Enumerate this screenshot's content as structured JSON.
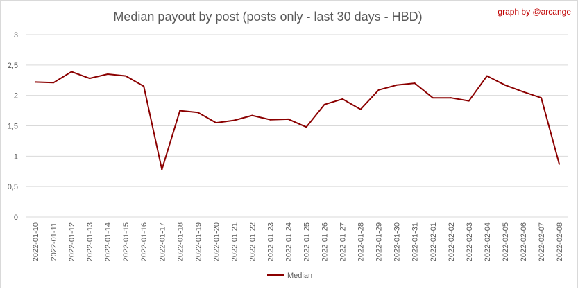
{
  "chart_data": {
    "type": "line",
    "title": "Median payout by post (posts only - last 30 days - HBD)",
    "credit": "graph by @arcange",
    "xlabel": "",
    "ylabel": "",
    "ylim": [
      0,
      3
    ],
    "yticks": [
      "0",
      "0,5",
      "1",
      "1,5",
      "2",
      "2,5",
      "3"
    ],
    "grid": true,
    "legend_position": "bottom",
    "categories": [
      "2022-01-10",
      "2022-01-11",
      "2022-01-12",
      "2022-01-13",
      "2022-01-14",
      "2022-01-15",
      "2022-01-16",
      "2022-01-17",
      "2022-01-18",
      "2022-01-19",
      "2022-01-20",
      "2022-01-21",
      "2022-01-22",
      "2022-01-23",
      "2022-01-24",
      "2022-01-25",
      "2022-01-26",
      "2022-01-27",
      "2022-01-28",
      "2022-01-29",
      "2022-01-30",
      "2022-01-31",
      "2022-02-01",
      "2022-02-02",
      "2022-02-03",
      "2022-02-04",
      "2022-02-05",
      "2022-02-06",
      "2022-02-07",
      "2022-02-08"
    ],
    "series": [
      {
        "name": "Median",
        "color": "#8b0000",
        "values": [
          2.22,
          2.21,
          2.39,
          2.28,
          2.35,
          2.32,
          2.15,
          0.78,
          1.75,
          1.72,
          1.55,
          1.59,
          1.67,
          1.6,
          1.61,
          1.48,
          1.85,
          1.94,
          1.77,
          2.09,
          2.17,
          2.2,
          1.96,
          1.96,
          1.91,
          2.32,
          2.17,
          2.06,
          1.96,
          0.87
        ]
      }
    ]
  }
}
